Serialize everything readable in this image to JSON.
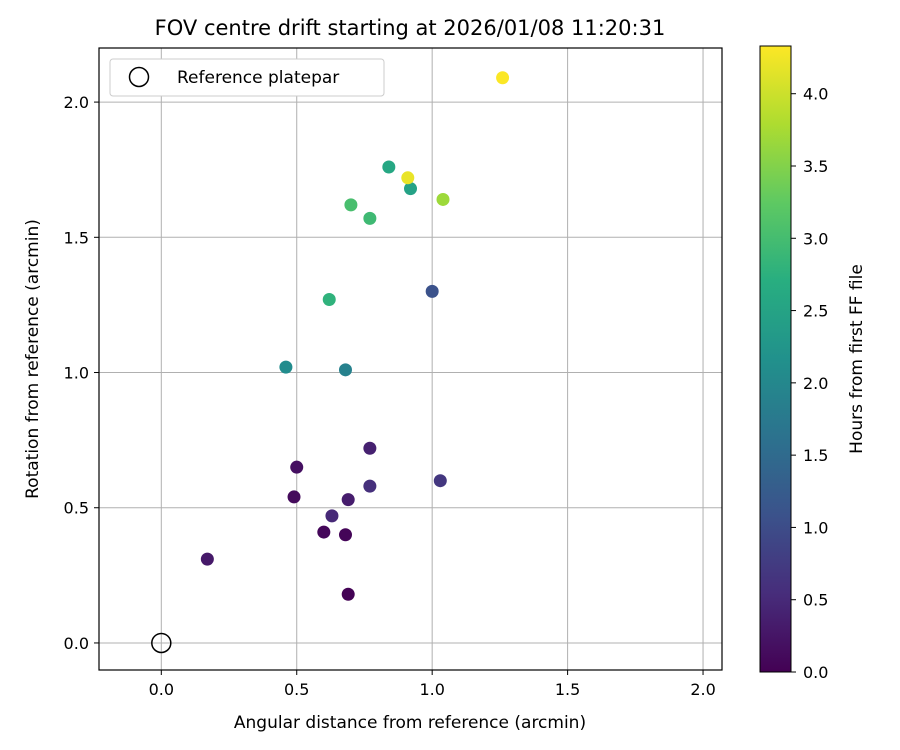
{
  "chart_data": {
    "type": "scatter",
    "title": "FOV centre drift starting at 2026/01/08 11:20:31",
    "xlabel": "Angular distance from reference (arcmin)",
    "ylabel": "Rotation from reference (arcmin)",
    "xlim": [
      -0.23,
      2.07
    ],
    "ylim": [
      -0.1,
      2.2
    ],
    "xticks": [
      0.0,
      0.5,
      1.0,
      1.5,
      2.0
    ],
    "yticks": [
      0.0,
      0.5,
      1.0,
      1.5,
      2.0
    ],
    "xtick_labels": [
      "0.0",
      "0.5",
      "1.0",
      "1.5",
      "2.0"
    ],
    "ytick_labels": [
      "0.0",
      "0.5",
      "1.0",
      "1.5",
      "2.0"
    ],
    "grid": true,
    "legend": {
      "position": "top-left",
      "label": "Reference platepar"
    },
    "reference_point": {
      "x": 0.0,
      "y": 0.0
    },
    "colorbar": {
      "label": "Hours from first FF file",
      "colormap": "viridis",
      "range": [
        0.0,
        4.33
      ],
      "ticks": [
        0.0,
        0.5,
        1.0,
        1.5,
        2.0,
        2.5,
        3.0,
        3.5,
        4.0
      ],
      "tick_labels": [
        "0.0",
        "0.5",
        "1.0",
        "1.5",
        "2.0",
        "2.5",
        "3.0",
        "3.5",
        "4.0"
      ]
    },
    "points": [
      {
        "x": 0.69,
        "y": 0.18,
        "hours": 0.02
      },
      {
        "x": 0.68,
        "y": 0.4,
        "hours": 0.05
      },
      {
        "x": 0.6,
        "y": 0.41,
        "hours": 0.08
      },
      {
        "x": 0.49,
        "y": 0.54,
        "hours": 0.12
      },
      {
        "x": 0.5,
        "y": 0.65,
        "hours": 0.18
      },
      {
        "x": 0.17,
        "y": 0.31,
        "hours": 0.3
      },
      {
        "x": 0.69,
        "y": 0.53,
        "hours": 0.35
      },
      {
        "x": 0.77,
        "y": 0.72,
        "hours": 0.4
      },
      {
        "x": 0.63,
        "y": 0.47,
        "hours": 0.5
      },
      {
        "x": 0.77,
        "y": 0.58,
        "hours": 0.6
      },
      {
        "x": 1.03,
        "y": 0.6,
        "hours": 0.7
      },
      {
        "x": 1.0,
        "y": 1.3,
        "hours": 1.1
      },
      {
        "x": 0.68,
        "y": 1.01,
        "hours": 1.9
      },
      {
        "x": 0.46,
        "y": 1.02,
        "hours": 2.1
      },
      {
        "x": 0.92,
        "y": 1.68,
        "hours": 2.5
      },
      {
        "x": 0.84,
        "y": 1.76,
        "hours": 2.6
      },
      {
        "x": 0.62,
        "y": 1.27,
        "hours": 2.8
      },
      {
        "x": 0.77,
        "y": 1.57,
        "hours": 2.95
      },
      {
        "x": 0.7,
        "y": 1.62,
        "hours": 3.05
      },
      {
        "x": 1.04,
        "y": 1.64,
        "hours": 3.7
      },
      {
        "x": 0.91,
        "y": 1.72,
        "hours": 4.2
      },
      {
        "x": 1.26,
        "y": 2.09,
        "hours": 4.32
      }
    ]
  }
}
